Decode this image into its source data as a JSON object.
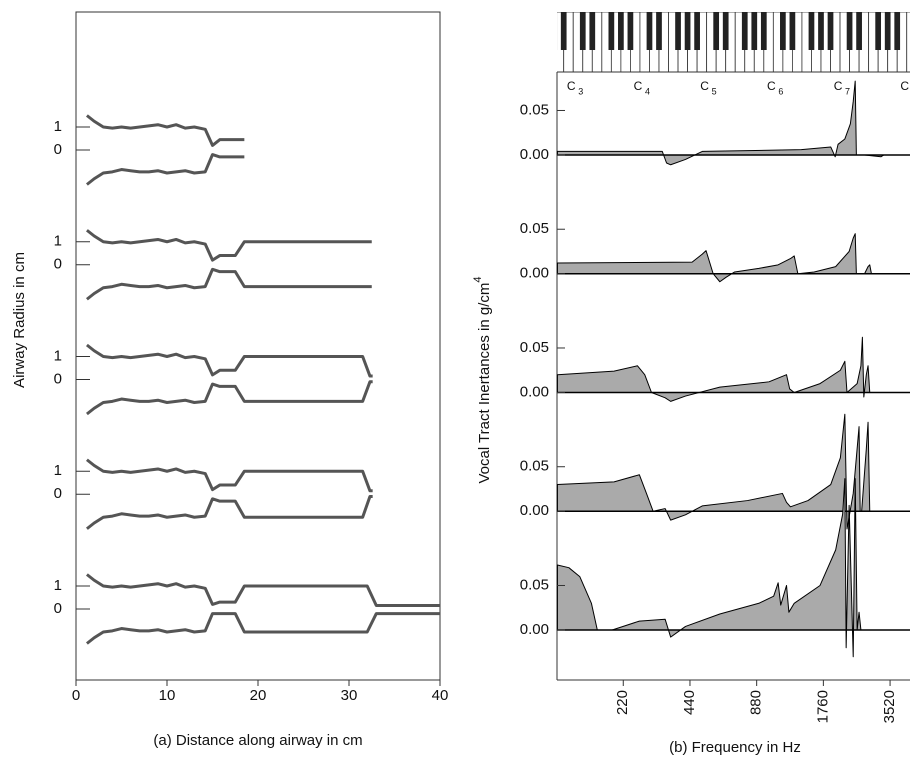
{
  "chart_data": [
    {
      "type": "airway",
      "xlabel": "(a)  Distance along airway in cm",
      "ylabel": "Airway Radius in cm",
      "xlim": [
        0,
        40
      ],
      "xticks": [
        0,
        10,
        20,
        30,
        40
      ],
      "ylim": [
        -2.5,
        2.5
      ],
      "yticks": [
        0,
        1
      ],
      "color": "#555555",
      "panels": [
        {
          "x": [
            1.2,
            2,
            3,
            4,
            5,
            6,
            7,
            8,
            9,
            10,
            11,
            12,
            13,
            14.2,
            15,
            15.8,
            18.5
          ],
          "series": [
            {
              "values": [
                1.5,
                1.25,
                1.0,
                0.95,
                1.0,
                0.95,
                1.0,
                1.05,
                1.1,
                1.0,
                1.1,
                0.95,
                1.0,
                0.9,
                0.2,
                0.45,
                0.45
              ]
            },
            {
              "values": [
                -1.5,
                -1.25,
                -1.0,
                -0.95,
                -0.85,
                -0.9,
                -0.95,
                -0.95,
                -0.9,
                -1.0,
                -0.95,
                -0.9,
                -1.0,
                -0.95,
                -0.2,
                -0.3,
                -0.3
              ]
            }
          ]
        },
        {
          "x": [
            1.2,
            2,
            3,
            4,
            5,
            6,
            7,
            8,
            9,
            10,
            11,
            12,
            13,
            14.2,
            15,
            15.8,
            17.5,
            18.5,
            32.5
          ],
          "series": [
            {
              "values": [
                1.5,
                1.25,
                1.0,
                0.95,
                1.0,
                0.95,
                1.0,
                1.05,
                1.1,
                1.0,
                1.1,
                0.95,
                1.0,
                0.9,
                0.2,
                0.4,
                0.4,
                1.0,
                1.0
              ]
            },
            {
              "values": [
                -1.5,
                -1.25,
                -1.0,
                -0.95,
                -0.85,
                -0.9,
                -0.95,
                -0.95,
                -0.9,
                -1.0,
                -0.95,
                -0.9,
                -1.0,
                -0.95,
                -0.2,
                -0.3,
                -0.3,
                -0.95,
                -0.95
              ]
            }
          ]
        },
        {
          "x": [
            1.2,
            2,
            3,
            4,
            5,
            6,
            7,
            8,
            9,
            10,
            11,
            12,
            13,
            14.2,
            15,
            15.8,
            17.5,
            18.5,
            31.5,
            32.3,
            32.6
          ],
          "series": [
            {
              "values": [
                1.5,
                1.25,
                1.0,
                0.95,
                1.0,
                0.95,
                1.0,
                1.05,
                1.1,
                1.0,
                1.1,
                0.95,
                1.0,
                0.9,
                0.2,
                0.4,
                0.4,
                1.0,
                1.0,
                0.15,
                0.15
              ]
            },
            {
              "values": [
                -1.5,
                -1.25,
                -1.0,
                -0.95,
                -0.85,
                -0.9,
                -0.95,
                -0.95,
                -0.9,
                -1.0,
                -0.95,
                -0.9,
                -1.0,
                -0.95,
                -0.2,
                -0.3,
                -0.3,
                -0.95,
                -0.95,
                -0.1,
                -0.1
              ]
            }
          ]
        },
        {
          "x": [
            1.2,
            2,
            3,
            4,
            5,
            6,
            7,
            8,
            9,
            10,
            11,
            12,
            13,
            14.2,
            15,
            15.8,
            17.5,
            18.5,
            31.5,
            32.3,
            32.6
          ],
          "series": [
            {
              "values": [
                1.5,
                1.25,
                1.0,
                0.95,
                1.0,
                0.95,
                1.0,
                1.05,
                1.1,
                1.0,
                1.1,
                0.95,
                1.0,
                0.9,
                0.2,
                0.4,
                0.4,
                1.0,
                1.0,
                0.15,
                0.15
              ]
            },
            {
              "values": [
                -1.5,
                -1.25,
                -1.0,
                -0.95,
                -0.85,
                -0.9,
                -0.95,
                -0.95,
                -0.9,
                -1.0,
                -0.95,
                -0.9,
                -1.0,
                -0.95,
                -0.2,
                -0.3,
                -0.3,
                -1.0,
                -1.0,
                -0.1,
                -0.1
              ]
            }
          ]
        },
        {
          "x": [
            1.2,
            2,
            3,
            4,
            5,
            6,
            7,
            8,
            9,
            10,
            11,
            12,
            13,
            14.2,
            15,
            15.8,
            17.5,
            18.5,
            32,
            33,
            40
          ],
          "series": [
            {
              "values": [
                1.5,
                1.25,
                1.0,
                0.95,
                1.0,
                0.95,
                1.0,
                1.05,
                1.1,
                1.0,
                1.1,
                0.95,
                1.0,
                0.9,
                0.2,
                0.3,
                0.3,
                1.0,
                1.0,
                0.15,
                0.15
              ]
            },
            {
              "values": [
                -1.5,
                -1.25,
                -1.0,
                -0.95,
                -0.85,
                -0.9,
                -0.95,
                -0.95,
                -0.9,
                -1.0,
                -0.95,
                -0.9,
                -1.0,
                -0.95,
                -0.2,
                -0.2,
                -0.2,
                -1.0,
                -1.0,
                -0.2,
                -0.2
              ]
            }
          ]
        }
      ]
    },
    {
      "type": "area",
      "xlabel": "(b)   Frequency in Hz",
      "ylabel": "Vocal Tract Inertances in g/cm",
      "ylabel_sup": "4",
      "xscale": "log",
      "xlim": [
        110.5,
        4330
      ],
      "xticks": [
        220,
        440,
        880,
        1760,
        3520
      ],
      "ylim": [
        -0.04,
        0.093
      ],
      "yticks": [
        {
          "value": 0,
          "label": "0.00"
        },
        0.05
      ],
      "color": "#aaaaaa",
      "keyticks": [
        {
          "value": 130.81,
          "label": "C",
          "sub": "3"
        },
        {
          "value": 261.63,
          "label": "C",
          "sub": "4"
        },
        {
          "value": 523.25,
          "label": "C",
          "sub": "5"
        },
        {
          "value": 1046.5,
          "label": "C",
          "sub": "6"
        },
        {
          "value": 2093.0,
          "label": "C",
          "sub": "7"
        },
        {
          "value": 4186.0,
          "label": "C"
        }
      ],
      "panels": [
        {
          "x": [
            111,
            330,
            345,
            360,
            420,
            500,
            1400,
            1900,
            1990,
            2050,
            2200,
            2330,
            2400,
            2450,
            2480,
            2700,
            3200,
            3300,
            4330
          ],
          "values": [
            0.004,
            0.004,
            -0.009,
            -0.011,
            -0.005,
            0.004,
            0.006,
            0.009,
            -0.002,
            0.012,
            0.018,
            0.035,
            0.06,
            0.083,
            0,
            0,
            -0.002,
            0,
            0
          ]
        },
        {
          "x": [
            111,
            450,
            500,
            520,
            560,
            600,
            640,
            700,
            900,
            1100,
            1250,
            1300,
            1350,
            1600,
            2000,
            2300,
            2400,
            2450,
            2480,
            2700,
            2800,
            2850,
            2900,
            4330
          ],
          "values": [
            0.012,
            0.013,
            0.022,
            0.026,
            0,
            -0.009,
            -0.004,
            0.002,
            0.006,
            0.01,
            0.017,
            0.02,
            0,
            0.002,
            0.008,
            0.025,
            0.04,
            0.045,
            0,
            0,
            0.008,
            0.01,
            0,
            0
          ]
        },
        {
          "x": [
            111,
            200,
            255,
            275,
            295,
            340,
            360,
            420,
            600,
            1000,
            1200,
            1240,
            1300,
            1700,
            2100,
            2200,
            2250,
            2500,
            2600,
            2640,
            2680,
            2750,
            2800,
            2850,
            4330
          ],
          "values": [
            0.02,
            0.024,
            0.03,
            0.02,
            0,
            -0.006,
            -0.01,
            -0.004,
            0.006,
            0.012,
            0.02,
            0.004,
            0,
            0.01,
            0.025,
            0.035,
            0,
            0.01,
            0.03,
            0.062,
            -0.005,
            0.02,
            0.03,
            0,
            0
          ]
        },
        {
          "x": [
            111,
            200,
            260,
            280,
            300,
            340,
            360,
            420,
            500,
            800,
            1150,
            1200,
            1250,
            1500,
            1900,
            2100,
            2200,
            2250,
            2400,
            2550,
            2580,
            2620,
            2750,
            2800,
            2850,
            4330
          ],
          "values": [
            0.03,
            0.033,
            0.041,
            0.02,
            0,
            0.003,
            -0.01,
            -0.004,
            0.006,
            0.012,
            0.02,
            0.01,
            0.005,
            0.012,
            0.03,
            0.06,
            0.109,
            -0.02,
            0.02,
            0.095,
            0,
            0,
            0.07,
            0.1,
            0,
            0
          ]
        },
        {
          "x": [
            111,
            125,
            140,
            158,
            168,
            196,
            260,
            340,
            360,
            420,
            600,
            900,
            1050,
            1100,
            1130,
            1200,
            1230,
            1300,
            1700,
            2000,
            2150,
            2200,
            2230,
            2300,
            2400,
            2450,
            2500,
            2550,
            2600,
            4330
          ],
          "values": [
            0.073,
            0.07,
            0.06,
            0.03,
            0,
            0,
            0.01,
            0.012,
            -0.008,
            0.004,
            0.018,
            0.03,
            0.038,
            0.053,
            0.028,
            0.05,
            0.02,
            0.03,
            0.05,
            0.09,
            0.13,
            0.17,
            -0.02,
            0.14,
            -0.03,
            0.17,
            0,
            0.02,
            0,
            0
          ]
        }
      ]
    }
  ]
}
